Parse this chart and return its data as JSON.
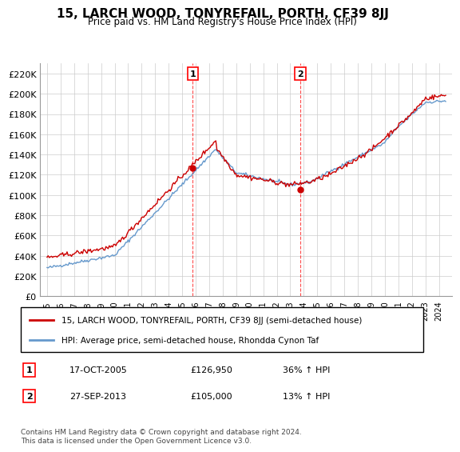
{
  "title": "15, LARCH WOOD, TONYREFAIL, PORTH, CF39 8JJ",
  "subtitle": "Price paid vs. HM Land Registry's House Price Index (HPI)",
  "ylabel_ticks": [
    "£0",
    "£20K",
    "£40K",
    "£60K",
    "£80K",
    "£100K",
    "£120K",
    "£140K",
    "£160K",
    "£180K",
    "£200K",
    "£220K"
  ],
  "ytick_values": [
    0,
    20000,
    40000,
    60000,
    80000,
    100000,
    120000,
    140000,
    160000,
    180000,
    200000,
    220000
  ],
  "ylim": [
    0,
    230000
  ],
  "legend_line1": "15, LARCH WOOD, TONYREFAIL, PORTH, CF39 8JJ (semi-detached house)",
  "legend_line2": "HPI: Average price, semi-detached house, Rhondda Cynon Taf",
  "sale1_label": "1",
  "sale1_date": "17-OCT-2005",
  "sale1_price": "£126,950",
  "sale1_hpi": "36% ↑ HPI",
  "sale2_label": "2",
  "sale2_date": "27-SEP-2013",
  "sale2_price": "£105,000",
  "sale2_hpi": "13% ↑ HPI",
  "footnote": "Contains HM Land Registry data © Crown copyright and database right 2024.\nThis data is licensed under the Open Government Licence v3.0.",
  "line_color_red": "#CC0000",
  "line_color_blue": "#6699CC",
  "sale1_x": 2005.79,
  "sale2_x": 2013.74,
  "background_color": "#FFFFFF",
  "grid_color": "#CCCCCC"
}
